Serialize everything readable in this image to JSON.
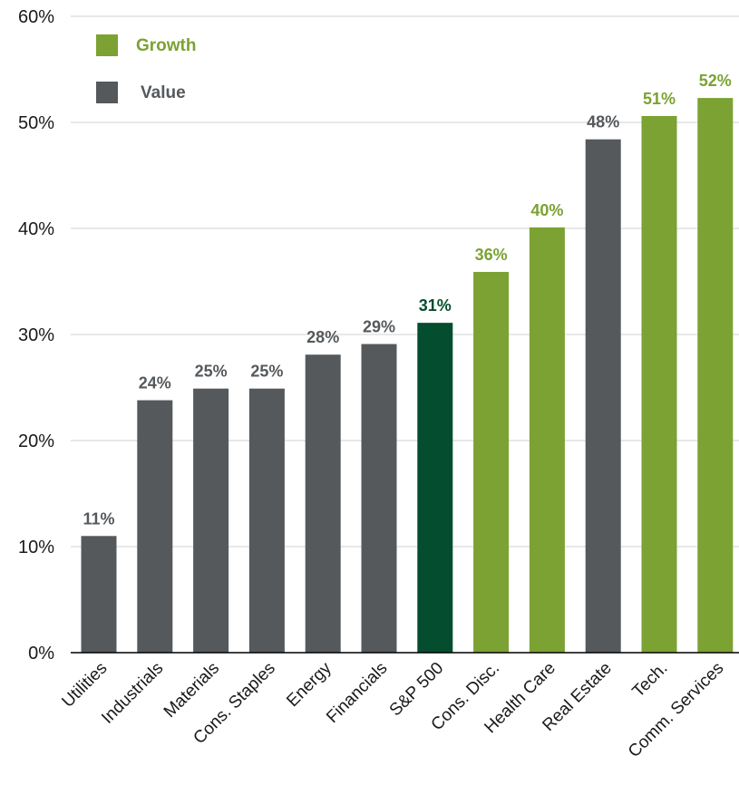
{
  "colors": {
    "growth": "#7ba232",
    "value": "#55595c",
    "benchmark": "#044d2e",
    "grid": "#d9d9d9",
    "axis": "#000000"
  },
  "legend": {
    "growth_label": "Growth",
    "value_label": "Value",
    "position": "top-left"
  },
  "chart_data": {
    "type": "bar",
    "title": "",
    "xlabel": "",
    "ylabel": "",
    "ylim": [
      0,
      60
    ],
    "y_tick_values": [
      0,
      10,
      20,
      30,
      40,
      50,
      60
    ],
    "y_tick_labels": [
      "0%",
      "10%",
      "20%",
      "30%",
      "40%",
      "50%",
      "60%"
    ],
    "grid": true,
    "categories": [
      "Utilities",
      "Industrials",
      "Materials",
      "Cons. Staples",
      "Energy",
      "Financials",
      "S&P 500",
      "Cons. Disc.",
      "Health Care",
      "Real Estate",
      "Tech.",
      "Comm. Services"
    ],
    "values": [
      11,
      23.8,
      24.9,
      24.9,
      28.1,
      29.1,
      31.1,
      35.9,
      40.1,
      48.4,
      50.6,
      52.3
    ],
    "data_labels": [
      "11%",
      "24%",
      "25%",
      "25%",
      "28%",
      "29%",
      "31%",
      "36%",
      "40%",
      "48%",
      "51%",
      "52%"
    ],
    "groups": [
      "value",
      "value",
      "value",
      "value",
      "value",
      "value",
      "benchmark",
      "growth",
      "growth",
      "value",
      "growth",
      "growth"
    ]
  }
}
